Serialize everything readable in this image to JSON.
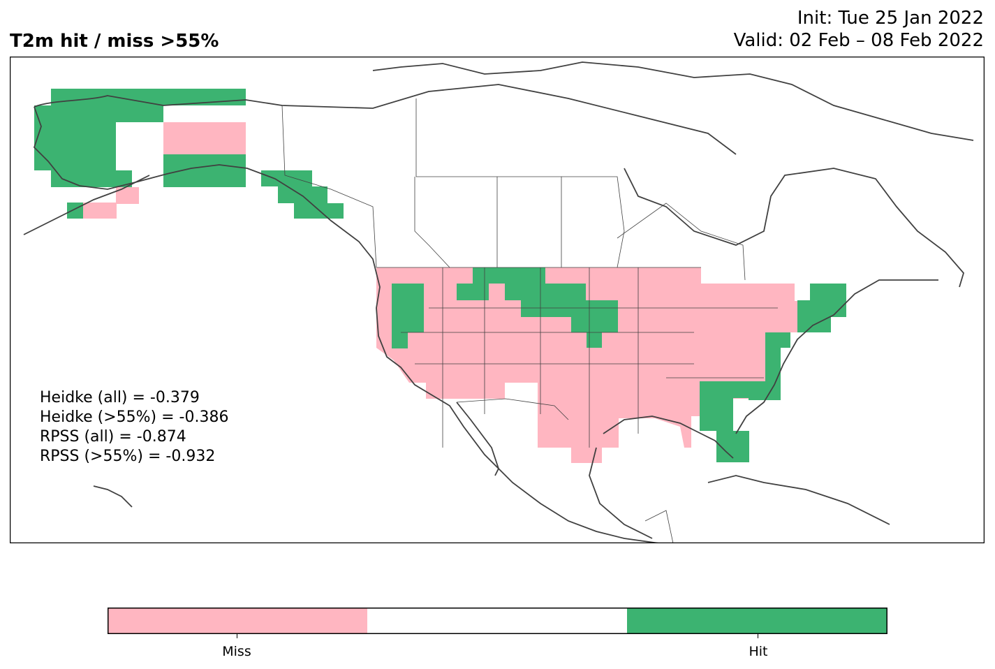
{
  "header": {
    "title": "T2m hit / miss  >55%",
    "init": "Init: Tue 25 Jan 2022",
    "valid": "Valid: 02 Feb – 08 Feb 2022"
  },
  "stats": {
    "heidke_all": "Heidke (all) = -0.379",
    "heidke_55": "Heidke (>55%) = -0.386",
    "rpss_all": "RPSS (all) = -0.874",
    "rpss_55": "RPSS (>55%) = -0.932"
  },
  "colorbar": {
    "miss_label": "Miss",
    "hit_label": "Hit"
  },
  "colors": {
    "miss": "#ffb6c1",
    "neutral": "#ffffff",
    "hit": "#3cb371",
    "coast": "#404040"
  }
}
